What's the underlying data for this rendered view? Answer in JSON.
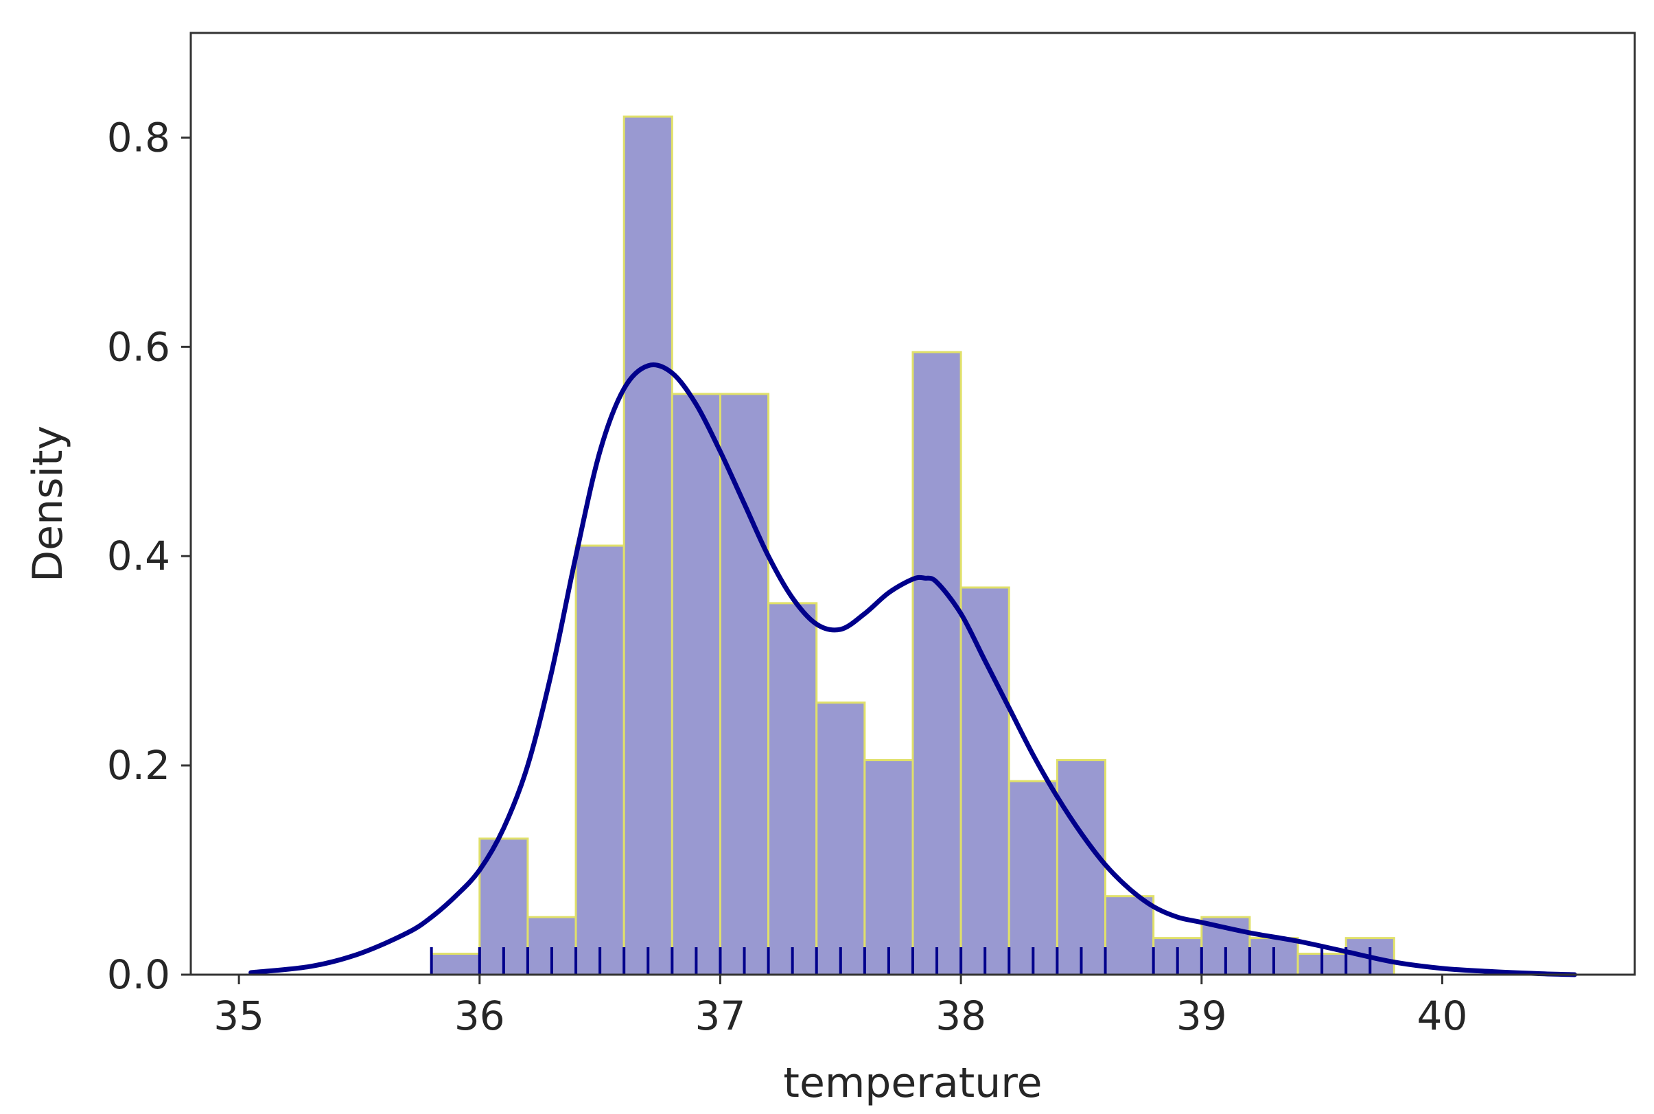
{
  "chart_data": {
    "type": "bar",
    "subtype": "histogram with kde and rug",
    "title": "",
    "xlabel": "temperature",
    "ylabel": "Density",
    "xlim": [
      34.8,
      40.8
    ],
    "ylim": [
      0,
      0.9
    ],
    "x_ticks": [
      35,
      36,
      37,
      38,
      39,
      40
    ],
    "x_tick_labels": [
      "35",
      "36",
      "37",
      "38",
      "39",
      "40"
    ],
    "y_ticks": [
      0.0,
      0.2,
      0.4,
      0.6,
      0.8
    ],
    "y_tick_labels": [
      "0.0",
      "0.2",
      "0.4",
      "0.6",
      "0.8"
    ],
    "grid": false,
    "legend": "none",
    "colors": {
      "bar_fill": "#9999d1",
      "bar_edge": "#e0e06a",
      "kde_line": "#00008b",
      "rug": "#00008b",
      "axes": "#333333",
      "text": "#262626"
    },
    "histogram": {
      "bin_width": 0.2,
      "bin_edges_start": 35.8,
      "bin_lefts": [
        35.8,
        36.0,
        36.2,
        36.4,
        36.6,
        36.8,
        37.0,
        37.2,
        37.4,
        37.6,
        37.8,
        38.0,
        38.2,
        38.4,
        38.6,
        38.8,
        39.0,
        39.2,
        39.4,
        39.6
      ],
      "densities": [
        0.02,
        0.13,
        0.055,
        0.41,
        0.82,
        0.555,
        0.555,
        0.355,
        0.26,
        0.205,
        0.595,
        0.37,
        0.185,
        0.205,
        0.075,
        0.035,
        0.055,
        0.035,
        0.02,
        0.035
      ]
    },
    "kde": {
      "x": [
        35.05,
        35.3,
        35.5,
        35.7,
        35.8,
        35.9,
        36.0,
        36.1,
        36.2,
        36.3,
        36.4,
        36.5,
        36.6,
        36.7,
        36.8,
        36.9,
        37.0,
        37.1,
        37.2,
        37.3,
        37.4,
        37.5,
        37.6,
        37.7,
        37.8,
        37.85,
        37.9,
        38.0,
        38.1,
        38.2,
        38.3,
        38.4,
        38.5,
        38.6,
        38.7,
        38.8,
        38.9,
        39.0,
        39.2,
        39.4,
        39.6,
        39.8,
        40.0,
        40.2,
        40.4,
        40.55
      ],
      "y": [
        0.002,
        0.008,
        0.02,
        0.04,
        0.055,
        0.075,
        0.1,
        0.14,
        0.2,
        0.29,
        0.4,
        0.5,
        0.56,
        0.582,
        0.575,
        0.545,
        0.5,
        0.45,
        0.4,
        0.36,
        0.335,
        0.33,
        0.345,
        0.365,
        0.378,
        0.379,
        0.375,
        0.345,
        0.3,
        0.255,
        0.21,
        0.17,
        0.135,
        0.105,
        0.082,
        0.065,
        0.055,
        0.05,
        0.04,
        0.032,
        0.022,
        0.012,
        0.006,
        0.003,
        0.001,
        0.0
      ]
    },
    "rug": [
      35.8,
      36.0,
      36.1,
      36.2,
      36.3,
      36.4,
      36.5,
      36.6,
      36.7,
      36.8,
      36.9,
      37.0,
      37.1,
      37.2,
      37.3,
      37.4,
      37.5,
      37.6,
      37.7,
      37.8,
      37.9,
      38.0,
      38.1,
      38.2,
      38.3,
      38.4,
      38.5,
      38.6,
      38.8,
      38.9,
      39.0,
      39.1,
      39.2,
      39.3,
      39.5,
      39.6,
      39.7
    ]
  }
}
